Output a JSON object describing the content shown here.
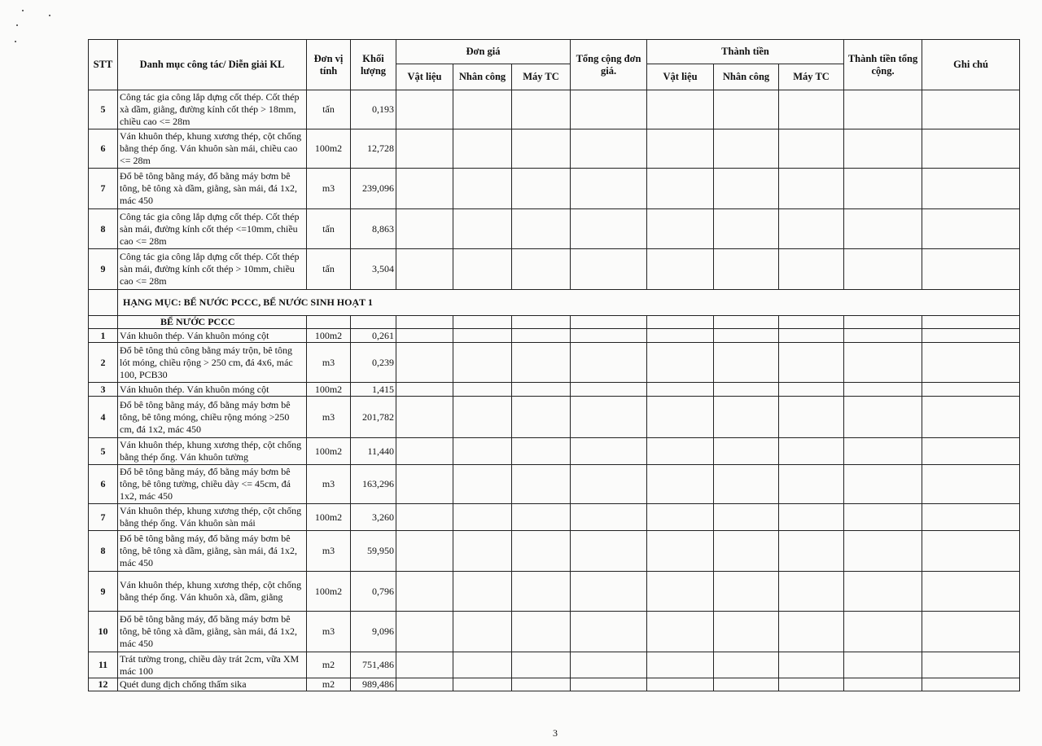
{
  "header": {
    "stt": "STT",
    "description": "Danh mục công tác/ Diễn giải KL",
    "unit": "Đơn vị tính",
    "quantity": "Khối lượng",
    "unit_price": "Đơn giá",
    "unit_price_sub": [
      "Vật liệu",
      "Nhân công",
      "Máy TC"
    ],
    "total_unit_price": "Tổng cộng đơn giá.",
    "amount": "Thành tiền",
    "amount_sub": [
      "Vật liệu",
      "Nhân công",
      "Máy TC"
    ],
    "total_amount": "Thành tiền tổng cộng.",
    "note": "Ghi chú"
  },
  "rows": [
    {
      "type": "item",
      "stt": "5",
      "desc": "Công tác gia công lắp dựng cốt thép. Cốt thép xà dầm, giằng, đường kính cốt thép > 18mm, chiều cao <= 28m",
      "unit": "tấn",
      "qty": "0,193"
    },
    {
      "type": "item",
      "stt": "6",
      "desc": "Ván khuôn thép, khung xương thép, cột chống bằng thép ống. Ván khuôn sàn mái, chiều cao <= 28m",
      "unit": "100m2",
      "qty": "12,728"
    },
    {
      "type": "item",
      "stt": "7",
      "desc": "Đổ bê tông bằng máy, đổ bằng máy bơm bê tông, bê tông xà dầm, giằng, sàn mái, đá 1x2, mác 450",
      "unit": "m3",
      "qty": "239,096"
    },
    {
      "type": "item",
      "stt": "8",
      "desc": "Công tác gia công lắp dựng cốt thép. Cốt thép sàn mái, đường kính cốt thép <=10mm, chiều cao <= 28m",
      "unit": "tấn",
      "qty": "8,863"
    },
    {
      "type": "item",
      "stt": "9",
      "desc": "Công tác gia công lắp dựng cốt thép. Cốt thép sàn mái, đường kính cốt thép > 10mm, chiều cao <= 28m",
      "unit": "tấn",
      "qty": "3,504"
    },
    {
      "type": "section",
      "desc": "HẠNG MỤC: BỂ NƯỚC PCCC, BỂ NƯỚC SINH HOẠT 1"
    },
    {
      "type": "subsection",
      "desc": "BỂ NƯỚC PCCC"
    },
    {
      "type": "item",
      "stt": "1",
      "desc": "Ván khuôn thép. Ván khuôn móng cột",
      "unit": "100m2",
      "qty": "0,261"
    },
    {
      "type": "item",
      "stt": "2",
      "desc": "Đổ bê tông thủ công bằng máy trộn, bê tông lót móng, chiều rộng > 250 cm, đá 4x6, mác 100, PCB30",
      "unit": "m3",
      "qty": "0,239"
    },
    {
      "type": "item",
      "stt": "3",
      "desc": "Ván khuôn thép. Ván khuôn móng cột",
      "unit": "100m2",
      "qty": "1,415"
    },
    {
      "type": "item",
      "stt": "4",
      "desc": "Đổ bê tông bằng máy, đổ bằng máy bơm bê tông, bê tông móng, chiều rộng móng >250 cm, đá 1x2, mác 450",
      "unit": "m3",
      "qty": "201,782"
    },
    {
      "type": "item",
      "stt": "5",
      "desc": "Ván khuôn thép, khung xương thép, cột chống bằng thép ống. Ván khuôn tường",
      "unit": "100m2",
      "qty": "11,440"
    },
    {
      "type": "item",
      "stt": "6",
      "desc": "Đổ bê tông bằng máy, đổ bằng máy bơm bê tông, bê tông tường, chiều dày <= 45cm, đá 1x2, mác 450",
      "unit": "m3",
      "qty": "163,296"
    },
    {
      "type": "item",
      "stt": "7",
      "desc": "Ván khuôn thép, khung xương thép, cột chống bằng thép ống. Ván khuôn sàn mái",
      "unit": "100m2",
      "qty": "3,260"
    },
    {
      "type": "item",
      "stt": "8",
      "desc": "Đổ bê tông bằng máy, đổ bằng máy bơm bê tông, bê tông xà dầm, giằng, sàn mái, đá 1x2, mác 450",
      "unit": "m3",
      "qty": "59,950"
    },
    {
      "type": "item",
      "stt": "9",
      "desc": "Ván khuôn thép, khung xương thép, cột chống bằng thép ống. Ván khuôn xà, dầm, giằng",
      "unit": "100m2",
      "qty": "0,796"
    },
    {
      "type": "item",
      "stt": "10",
      "desc": "Đổ bê tông bằng máy, đổ bằng máy bơm bê tông, bê tông xà dầm, giằng, sàn mái, đá 1x2, mác 450",
      "unit": "m3",
      "qty": "9,096"
    },
    {
      "type": "item",
      "stt": "11",
      "desc": "Trát tường trong, chiều dày trát 2cm, vữa XM mác 100",
      "unit": "m2",
      "qty": "751,486"
    },
    {
      "type": "item",
      "stt": "12",
      "desc": "Quét dung dịch chống thấm sika",
      "unit": "m2",
      "qty": "989,486"
    }
  ],
  "page_number": "3"
}
